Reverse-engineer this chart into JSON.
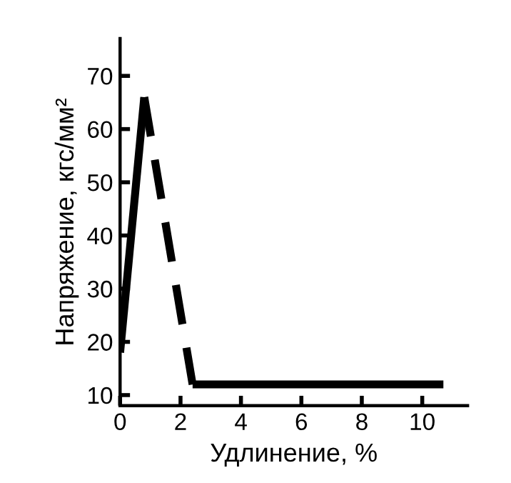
{
  "chart_data": {
    "type": "line",
    "xlabel": "Удлинение, %",
    "ylabel": "Напряжение, кгс/мм²",
    "xlim": [
      0,
      11.5
    ],
    "xticks": [
      0,
      2,
      4,
      6,
      8,
      10
    ],
    "ylim": [
      8,
      77
    ],
    "yticks": [
      10,
      20,
      30,
      40,
      50,
      60,
      70
    ],
    "grid": false,
    "series": [
      {
        "color": "#000000",
        "line_style": "solid",
        "x": [
          0,
          0.8
        ],
        "values": [
          18,
          66
        ]
      },
      {
        "color": "#000000",
        "line_style": "dashed",
        "x": [
          0.8,
          2.4
        ],
        "values": [
          66,
          12
        ]
      },
      {
        "color": "#000000",
        "line_style": "solid",
        "x": [
          2.4,
          10.7
        ],
        "values": [
          12,
          12
        ]
      }
    ]
  }
}
